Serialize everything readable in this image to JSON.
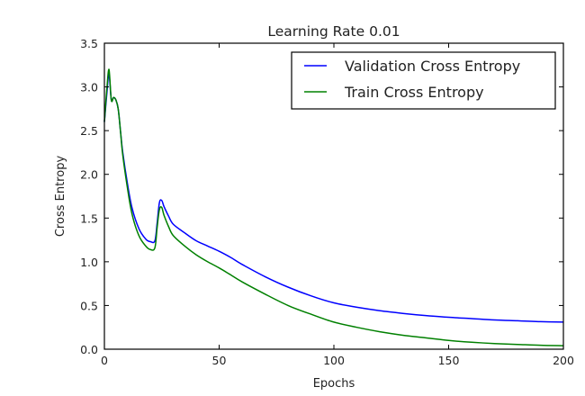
{
  "chart_data": {
    "type": "line",
    "title": "Learning Rate 0.01",
    "xlabel": "Epochs",
    "ylabel": "Cross Entropy",
    "xlim": [
      0,
      200
    ],
    "ylim": [
      0.0,
      3.5
    ],
    "xticks": [
      0,
      50,
      100,
      150,
      200
    ],
    "xtick_labels": [
      "0",
      "50",
      "100",
      "150",
      "200"
    ],
    "yticks": [
      0.0,
      0.5,
      1.0,
      1.5,
      2.0,
      2.5,
      3.0,
      3.5
    ],
    "ytick_labels": [
      "0.0",
      "0.5",
      "1.0",
      "1.5",
      "2.0",
      "2.5",
      "3.0",
      "3.5"
    ],
    "grid": false,
    "legend_position": "upper right",
    "series": [
      {
        "name": "Validation Cross Entropy",
        "color": "#0000ff",
        "x": [
          0,
          1,
          2,
          3,
          4,
          5,
          6,
          7,
          8,
          10,
          12,
          15,
          18,
          20,
          22,
          23,
          24,
          25,
          26,
          28,
          30,
          35,
          40,
          45,
          50,
          55,
          60,
          70,
          80,
          90,
          100,
          110,
          120,
          130,
          140,
          150,
          160,
          170,
          180,
          190,
          200
        ],
        "y": [
          2.6,
          2.9,
          3.15,
          2.85,
          2.88,
          2.85,
          2.75,
          2.5,
          2.25,
          1.9,
          1.62,
          1.38,
          1.26,
          1.23,
          1.24,
          1.45,
          1.68,
          1.7,
          1.63,
          1.52,
          1.43,
          1.33,
          1.24,
          1.18,
          1.12,
          1.05,
          0.97,
          0.83,
          0.71,
          0.61,
          0.53,
          0.48,
          0.44,
          0.41,
          0.385,
          0.365,
          0.35,
          0.335,
          0.325,
          0.315,
          0.31
        ]
      },
      {
        "name": "Train Cross Entropy",
        "color": "#008000",
        "x": [
          0,
          1,
          2,
          3,
          4,
          5,
          6,
          7,
          8,
          10,
          12,
          15,
          18,
          20,
          22,
          23,
          24,
          25,
          26,
          28,
          30,
          35,
          40,
          45,
          50,
          55,
          60,
          70,
          80,
          90,
          100,
          110,
          120,
          130,
          140,
          150,
          160,
          170,
          180,
          190,
          200
        ],
        "y": [
          2.6,
          2.95,
          3.2,
          2.85,
          2.88,
          2.85,
          2.75,
          2.5,
          2.22,
          1.85,
          1.55,
          1.3,
          1.18,
          1.14,
          1.16,
          1.4,
          1.6,
          1.62,
          1.53,
          1.4,
          1.3,
          1.18,
          1.08,
          1.0,
          0.93,
          0.85,
          0.77,
          0.63,
          0.5,
          0.4,
          0.31,
          0.25,
          0.2,
          0.16,
          0.13,
          0.1,
          0.08,
          0.065,
          0.055,
          0.045,
          0.04
        ]
      }
    ]
  }
}
